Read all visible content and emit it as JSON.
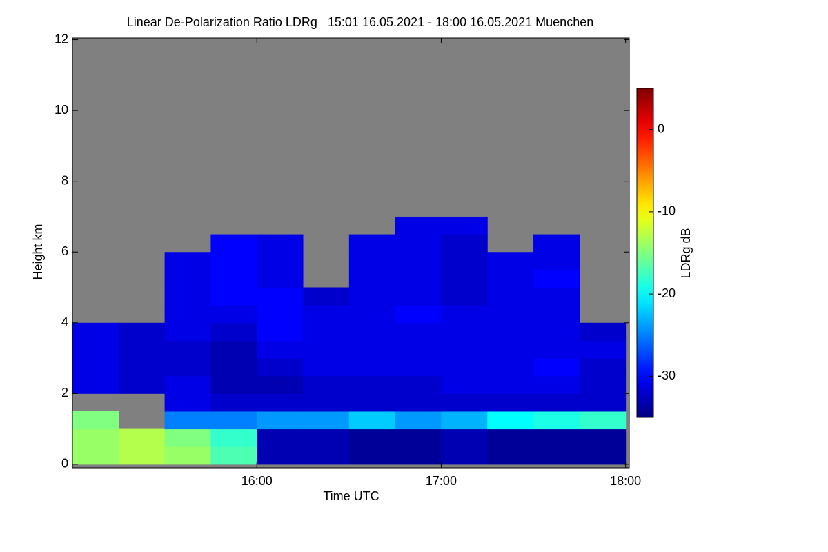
{
  "chart_data": {
    "type": "heatmap",
    "title": "Linear De-Polarization Ratio LDRg   15:01 16.05.2021 - 18:00 16.05.2021 Muenchen",
    "xlabel": "Time UTC",
    "ylabel": "Height km",
    "colorbar_label": "LDRg dB",
    "colormap": "jet",
    "missing_color": "#808080",
    "xlim": [
      15.0,
      18.02
    ],
    "ylim": [
      -0.1,
      12.05
    ],
    "xticks": [
      {
        "value": 16,
        "label": "16:00"
      },
      {
        "value": 17,
        "label": "17:00"
      },
      {
        "value": 18,
        "label": "18:00"
      }
    ],
    "yticks": [
      0,
      2,
      4,
      6,
      8,
      10,
      12
    ],
    "clim": [
      -35,
      5
    ],
    "cticks": [
      0,
      -10,
      -20,
      -30
    ],
    "x_edges": [
      15.0,
      15.25,
      15.5,
      15.75,
      16.0,
      16.25,
      16.5,
      16.75,
      17.0,
      17.25,
      17.5,
      17.75,
      18.0
    ],
    "y_edges": [
      0,
      0.5,
      1,
      1.5,
      2,
      2.5,
      3,
      3.5,
      4,
      4.5,
      5,
      5.5,
      6,
      6.5,
      7
    ],
    "values": [
      [
        -14,
        -13,
        -14,
        -17,
        -33,
        -33,
        -34,
        -34,
        -33,
        -34,
        -34,
        -34
      ],
      [
        -14,
        -13,
        -15,
        -18,
        -33,
        -33,
        -34,
        -34,
        -33,
        -34,
        -34,
        -34
      ],
      [
        -15,
        null,
        -25,
        -25,
        -24,
        -24,
        -22,
        -24,
        -23,
        -20,
        -19,
        -18
      ],
      [
        null,
        null,
        -31,
        -32,
        -32,
        -32,
        -32,
        -32,
        -32,
        -32,
        -32,
        -32
      ],
      [
        -31,
        -32,
        -31,
        -33,
        -33,
        -32,
        -32,
        -32,
        -31,
        -31,
        -31,
        -32
      ],
      [
        -31,
        -32,
        -32,
        -33,
        -32,
        -31,
        -31,
        -31,
        -31,
        -31,
        -30,
        -32
      ],
      [
        -31,
        -32,
        -32,
        -33,
        -31,
        -31,
        -31,
        -31,
        -31,
        -31,
        -31,
        -31
      ],
      [
        -31,
        -32,
        -31,
        -32,
        -30,
        -31,
        -31,
        -31,
        -31,
        -31,
        -31,
        -32
      ],
      [
        null,
        null,
        -31,
        -31,
        -30,
        -31,
        -31,
        -30,
        -31,
        -31,
        -31,
        null
      ],
      [
        null,
        null,
        -31,
        -30,
        -30,
        -32,
        -31,
        -31,
        -32,
        -31,
        -31,
        null
      ],
      [
        null,
        null,
        -31,
        -30,
        -31,
        null,
        -31,
        -31,
        -32,
        -31,
        -30,
        null
      ],
      [
        null,
        null,
        -31,
        -30,
        -31,
        null,
        -31,
        -31,
        -32,
        -31,
        -31,
        null
      ],
      [
        null,
        null,
        null,
        -30,
        -31,
        null,
        -31,
        -31,
        -32,
        null,
        -31,
        null
      ],
      [
        null,
        null,
        null,
        null,
        null,
        null,
        null,
        -31,
        -31,
        null,
        null,
        null
      ]
    ]
  }
}
